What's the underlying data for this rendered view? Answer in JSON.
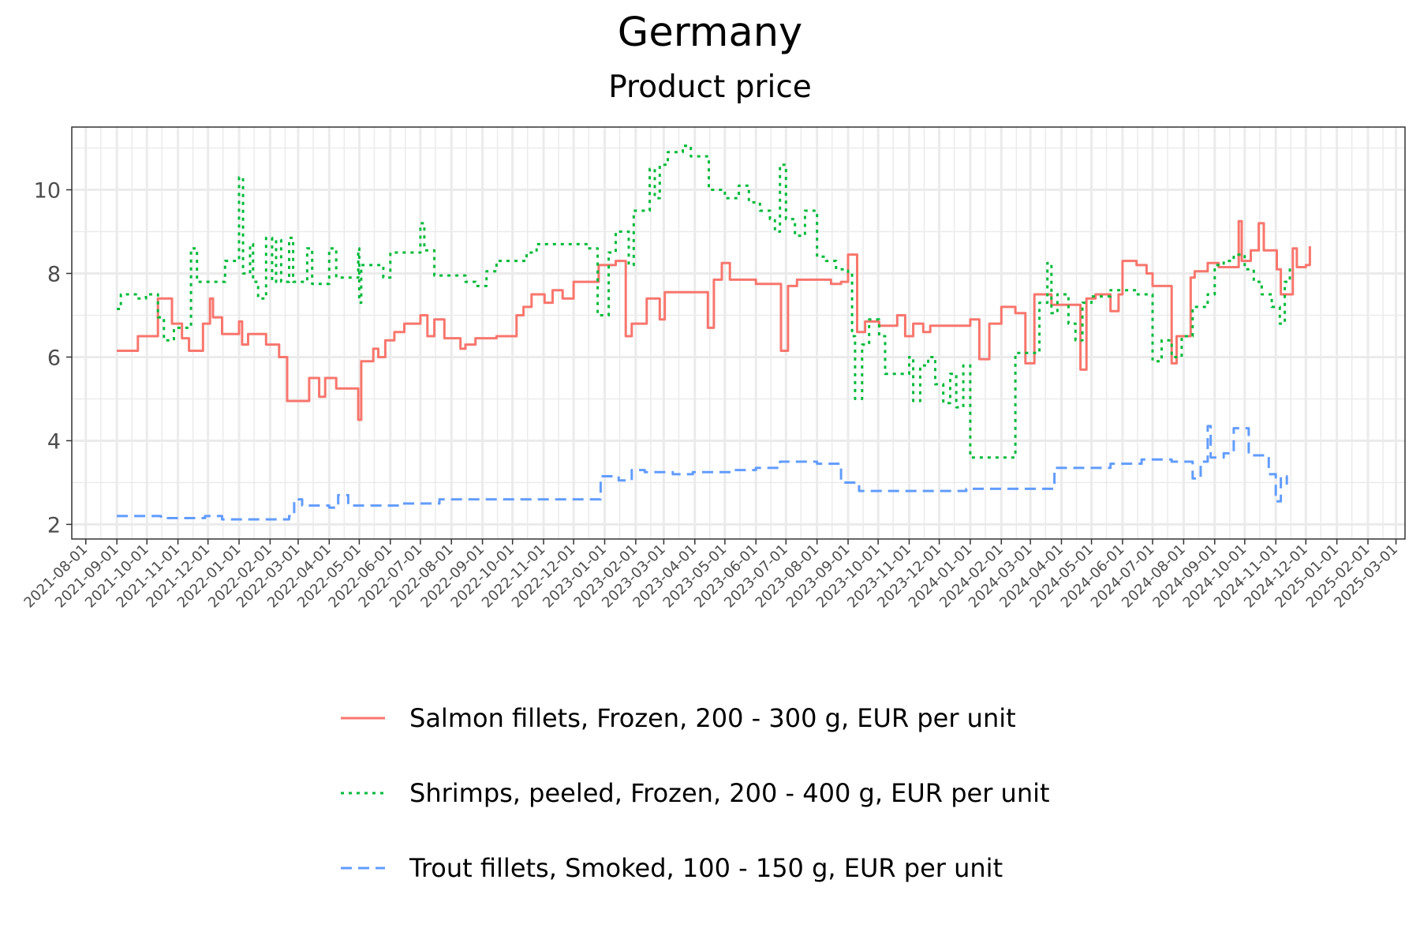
{
  "title": "Germany",
  "subtitle": "Product price",
  "chart_data": {
    "type": "line",
    "xlabel": "",
    "ylabel": "",
    "x_range": [
      "2021-07-18",
      "2025-03-10"
    ],
    "ylim": [
      1.65,
      11.5
    ],
    "y_ticks": [
      2,
      4,
      6,
      8,
      10
    ],
    "x_ticks": [
      "2021-08-01",
      "2021-09-01",
      "2021-10-01",
      "2021-11-01",
      "2021-12-01",
      "2022-01-01",
      "2022-02-01",
      "2022-03-01",
      "2022-04-01",
      "2022-05-01",
      "2022-06-01",
      "2022-07-01",
      "2022-08-01",
      "2022-09-01",
      "2022-10-01",
      "2022-11-01",
      "2022-12-01",
      "2023-01-01",
      "2023-02-01",
      "2023-03-01",
      "2023-04-01",
      "2023-05-01",
      "2023-06-01",
      "2023-07-01",
      "2023-08-01",
      "2023-09-01",
      "2023-10-01",
      "2023-11-01",
      "2023-12-01",
      "2024-01-01",
      "2024-02-01",
      "2024-03-01",
      "2024-04-01",
      "2024-05-01",
      "2024-06-01",
      "2024-07-01",
      "2024-08-01",
      "2024-09-01",
      "2024-10-01",
      "2024-11-01",
      "2024-12-01",
      "2025-01-01",
      "2025-02-01",
      "2025-03-01"
    ],
    "grid": true,
    "legend_position": "bottom",
    "series": [
      {
        "name": "Salmon fillets, Frozen, 200 - 300 g, EUR per unit",
        "color": "#f8766d",
        "line_style": "solid",
        "step": true,
        "points": [
          [
            "2021-09-01",
            6.15
          ],
          [
            "2021-09-22",
            6.5
          ],
          [
            "2021-10-12",
            7.4
          ],
          [
            "2021-10-26",
            6.8
          ],
          [
            "2021-11-05",
            6.45
          ],
          [
            "2021-11-12",
            6.15
          ],
          [
            "2021-11-26",
            6.8
          ],
          [
            "2021-12-03",
            7.4
          ],
          [
            "2021-12-06",
            6.95
          ],
          [
            "2021-12-15",
            6.55
          ],
          [
            "2022-01-01",
            6.85
          ],
          [
            "2022-01-04",
            6.3
          ],
          [
            "2022-01-10",
            6.55
          ],
          [
            "2022-01-28",
            6.3
          ],
          [
            "2022-02-10",
            6.0
          ],
          [
            "2022-02-18",
            4.95
          ],
          [
            "2022-03-12",
            5.5
          ],
          [
            "2022-03-22",
            5.05
          ],
          [
            "2022-03-28",
            5.5
          ],
          [
            "2022-04-08",
            5.25
          ],
          [
            "2022-04-30",
            4.5
          ],
          [
            "2022-05-03",
            5.9
          ],
          [
            "2022-05-15",
            6.2
          ],
          [
            "2022-05-20",
            6.0
          ],
          [
            "2022-05-27",
            6.4
          ],
          [
            "2022-06-05",
            6.6
          ],
          [
            "2022-06-15",
            6.8
          ],
          [
            "2022-07-01",
            7.0
          ],
          [
            "2022-07-08",
            6.5
          ],
          [
            "2022-07-15",
            6.9
          ],
          [
            "2022-07-25",
            6.45
          ],
          [
            "2022-08-10",
            6.2
          ],
          [
            "2022-08-15",
            6.3
          ],
          [
            "2022-08-25",
            6.45
          ],
          [
            "2022-09-15",
            6.5
          ],
          [
            "2022-10-05",
            7.0
          ],
          [
            "2022-10-12",
            7.2
          ],
          [
            "2022-10-20",
            7.5
          ],
          [
            "2022-11-02",
            7.3
          ],
          [
            "2022-11-10",
            7.6
          ],
          [
            "2022-11-20",
            7.4
          ],
          [
            "2022-12-01",
            7.8
          ],
          [
            "2022-12-26",
            8.2
          ],
          [
            "2023-01-12",
            8.3
          ],
          [
            "2023-01-22",
            6.5
          ],
          [
            "2023-01-28",
            6.8
          ],
          [
            "2023-02-12",
            7.4
          ],
          [
            "2023-02-25",
            6.9
          ],
          [
            "2023-03-02",
            7.55
          ],
          [
            "2023-04-14",
            6.7
          ],
          [
            "2023-04-20",
            7.85
          ],
          [
            "2023-04-28",
            8.25
          ],
          [
            "2023-05-06",
            7.85
          ],
          [
            "2023-06-01",
            7.75
          ],
          [
            "2023-06-26",
            6.15
          ],
          [
            "2023-07-03",
            7.7
          ],
          [
            "2023-07-12",
            7.85
          ],
          [
            "2023-08-15",
            7.75
          ],
          [
            "2023-08-25",
            7.8
          ],
          [
            "2023-09-01",
            8.45
          ],
          [
            "2023-09-10",
            6.6
          ],
          [
            "2023-09-18",
            6.85
          ],
          [
            "2023-10-02",
            6.75
          ],
          [
            "2023-10-20",
            7.0
          ],
          [
            "2023-10-28",
            6.5
          ],
          [
            "2023-11-05",
            6.8
          ],
          [
            "2023-11-15",
            6.6
          ],
          [
            "2023-11-22",
            6.75
          ],
          [
            "2024-01-01",
            6.9
          ],
          [
            "2024-01-10",
            5.95
          ],
          [
            "2024-01-20",
            6.8
          ],
          [
            "2024-02-01",
            7.2
          ],
          [
            "2024-02-15",
            7.05
          ],
          [
            "2024-02-25",
            5.85
          ],
          [
            "2024-03-05",
            7.5
          ],
          [
            "2024-03-22",
            7.25
          ],
          [
            "2024-04-20",
            5.7
          ],
          [
            "2024-04-26",
            7.4
          ],
          [
            "2024-05-05",
            7.5
          ],
          [
            "2024-05-20",
            7.1
          ],
          [
            "2024-05-28",
            7.5
          ],
          [
            "2024-06-01",
            8.3
          ],
          [
            "2024-06-15",
            8.2
          ],
          [
            "2024-06-25",
            8.0
          ],
          [
            "2024-07-01",
            7.7
          ],
          [
            "2024-07-20",
            5.85
          ],
          [
            "2024-07-25",
            6.5
          ],
          [
            "2024-08-08",
            7.9
          ],
          [
            "2024-08-12",
            8.05
          ],
          [
            "2024-08-25",
            8.25
          ],
          [
            "2024-09-05",
            8.15
          ],
          [
            "2024-09-25",
            9.25
          ],
          [
            "2024-09-28",
            8.3
          ],
          [
            "2024-10-07",
            8.55
          ],
          [
            "2024-10-15",
            9.2
          ],
          [
            "2024-10-20",
            8.55
          ],
          [
            "2024-11-02",
            8.1
          ],
          [
            "2024-11-06",
            7.5
          ],
          [
            "2024-11-18",
            8.6
          ],
          [
            "2024-11-22",
            8.15
          ],
          [
            "2024-12-01",
            8.2
          ],
          [
            "2024-12-05",
            8.65
          ]
        ]
      },
      {
        "name": "Shrimps, peeled, Frozen, 200 - 400 g, EUR per unit",
        "color": "#00ba38",
        "line_style": "dotted",
        "step": true,
        "points": [
          [
            "2021-09-01",
            7.15
          ],
          [
            "2021-09-05",
            7.5
          ],
          [
            "2021-09-20",
            7.4
          ],
          [
            "2021-09-30",
            7.5
          ],
          [
            "2021-10-12",
            6.95
          ],
          [
            "2021-10-18",
            6.4
          ],
          [
            "2021-10-28",
            6.7
          ],
          [
            "2021-11-14",
            8.6
          ],
          [
            "2021-11-20",
            7.8
          ],
          [
            "2021-12-18",
            8.3
          ],
          [
            "2022-01-01",
            10.3
          ],
          [
            "2022-01-05",
            8.0
          ],
          [
            "2022-01-12",
            8.7
          ],
          [
            "2022-01-15",
            7.8
          ],
          [
            "2022-01-20",
            7.4
          ],
          [
            "2022-01-28",
            8.85
          ],
          [
            "2022-02-03",
            7.8
          ],
          [
            "2022-02-07",
            8.8
          ],
          [
            "2022-02-12",
            7.8
          ],
          [
            "2022-02-20",
            8.85
          ],
          [
            "2022-02-24",
            7.8
          ],
          [
            "2022-03-10",
            8.6
          ],
          [
            "2022-03-15",
            7.75
          ],
          [
            "2022-04-01",
            8.6
          ],
          [
            "2022-04-08",
            7.9
          ],
          [
            "2022-04-30",
            8.6
          ],
          [
            "2022-05-01",
            7.3
          ],
          [
            "2022-05-03",
            8.2
          ],
          [
            "2022-05-25",
            7.9
          ],
          [
            "2022-06-01",
            8.5
          ],
          [
            "2022-07-01",
            9.2
          ],
          [
            "2022-07-05",
            8.55
          ],
          [
            "2022-07-15",
            7.95
          ],
          [
            "2022-08-15",
            7.8
          ],
          [
            "2022-08-25",
            7.7
          ],
          [
            "2022-09-05",
            8.05
          ],
          [
            "2022-09-15",
            8.3
          ],
          [
            "2022-10-15",
            8.5
          ],
          [
            "2022-10-25",
            8.7
          ],
          [
            "2022-12-15",
            8.6
          ],
          [
            "2022-12-25",
            7.0
          ],
          [
            "2023-01-05",
            8.5
          ],
          [
            "2023-01-12",
            9.0
          ],
          [
            "2023-01-25",
            8.2
          ],
          [
            "2023-01-30",
            9.5
          ],
          [
            "2023-02-15",
            10.5
          ],
          [
            "2023-02-20",
            9.8
          ],
          [
            "2023-02-25",
            10.6
          ],
          [
            "2023-03-05",
            10.9
          ],
          [
            "2023-03-20",
            11.05
          ],
          [
            "2023-03-28",
            10.8
          ],
          [
            "2023-04-15",
            10.0
          ],
          [
            "2023-05-01",
            9.8
          ],
          [
            "2023-05-15",
            10.1
          ],
          [
            "2023-05-25",
            9.7
          ],
          [
            "2023-06-05",
            9.5
          ],
          [
            "2023-06-15",
            9.3
          ],
          [
            "2023-06-20",
            9.0
          ],
          [
            "2023-06-25",
            10.6
          ],
          [
            "2023-07-01",
            9.3
          ],
          [
            "2023-07-10",
            8.9
          ],
          [
            "2023-07-20",
            9.5
          ],
          [
            "2023-08-01",
            8.4
          ],
          [
            "2023-08-10",
            8.3
          ],
          [
            "2023-08-20",
            8.1
          ],
          [
            "2023-09-01",
            8.0
          ],
          [
            "2023-09-05",
            6.5
          ],
          [
            "2023-09-08",
            5.0
          ],
          [
            "2023-09-15",
            6.3
          ],
          [
            "2023-09-22",
            6.9
          ],
          [
            "2023-10-02",
            6.5
          ],
          [
            "2023-10-08",
            5.6
          ],
          [
            "2023-11-01",
            6.0
          ],
          [
            "2023-11-05",
            4.95
          ],
          [
            "2023-11-12",
            5.8
          ],
          [
            "2023-11-20",
            6.0
          ],
          [
            "2023-11-27",
            5.35
          ],
          [
            "2023-12-05",
            4.9
          ],
          [
            "2023-12-12",
            5.6
          ],
          [
            "2023-12-18",
            4.8
          ],
          [
            "2023-12-25",
            5.8
          ],
          [
            "2024-01-01",
            3.6
          ],
          [
            "2024-02-15",
            6.1
          ],
          [
            "2024-03-10",
            7.3
          ],
          [
            "2024-03-18",
            8.25
          ],
          [
            "2024-03-22",
            7.05
          ],
          [
            "2024-03-28",
            7.5
          ],
          [
            "2024-04-08",
            6.8
          ],
          [
            "2024-04-15",
            6.4
          ],
          [
            "2024-04-22",
            7.3
          ],
          [
            "2024-05-01",
            7.45
          ],
          [
            "2024-05-20",
            7.6
          ],
          [
            "2024-06-15",
            7.5
          ],
          [
            "2024-07-01",
            5.9
          ],
          [
            "2024-07-10",
            6.4
          ],
          [
            "2024-07-20",
            6.0
          ],
          [
            "2024-07-30",
            6.5
          ],
          [
            "2024-08-10",
            7.2
          ],
          [
            "2024-08-25",
            7.5
          ],
          [
            "2024-09-01",
            8.2
          ],
          [
            "2024-09-10",
            8.3
          ],
          [
            "2024-09-20",
            8.45
          ],
          [
            "2024-10-01",
            8.1
          ],
          [
            "2024-10-10",
            7.8
          ],
          [
            "2024-10-18",
            7.5
          ],
          [
            "2024-10-28",
            7.2
          ],
          [
            "2024-11-05",
            6.8
          ],
          [
            "2024-11-10",
            7.8
          ],
          [
            "2024-11-15",
            8.2
          ]
        ]
      },
      {
        "name": "Trout fillets, Smoked, 100 - 150 g, EUR per unit",
        "color": "#619cff",
        "line_style": "dashed",
        "step": true,
        "points": [
          [
            "2021-09-01",
            2.2
          ],
          [
            "2021-10-15",
            2.15
          ],
          [
            "2021-11-28",
            2.2
          ],
          [
            "2021-12-15",
            2.12
          ],
          [
            "2022-02-20",
            2.2
          ],
          [
            "2022-02-25",
            2.6
          ],
          [
            "2022-03-05",
            2.45
          ],
          [
            "2022-04-01",
            2.4
          ],
          [
            "2022-04-10",
            2.7
          ],
          [
            "2022-04-20",
            2.45
          ],
          [
            "2022-05-10",
            2.45
          ],
          [
            "2022-06-10",
            2.5
          ],
          [
            "2022-07-20",
            2.6
          ],
          [
            "2022-12-28",
            3.15
          ],
          [
            "2023-01-15",
            3.05
          ],
          [
            "2023-01-28",
            3.3
          ],
          [
            "2023-02-10",
            3.25
          ],
          [
            "2023-03-10",
            3.2
          ],
          [
            "2023-03-30",
            3.25
          ],
          [
            "2023-05-10",
            3.3
          ],
          [
            "2023-06-01",
            3.35
          ],
          [
            "2023-06-25",
            3.5
          ],
          [
            "2023-08-01",
            3.45
          ],
          [
            "2023-08-25",
            3.0
          ],
          [
            "2023-09-12",
            2.8
          ],
          [
            "2023-12-28",
            2.85
          ],
          [
            "2024-02-15",
            2.85
          ],
          [
            "2024-03-25",
            3.35
          ],
          [
            "2024-04-25",
            3.35
          ],
          [
            "2024-05-20",
            3.45
          ],
          [
            "2024-06-20",
            3.55
          ],
          [
            "2024-07-20",
            3.5
          ],
          [
            "2024-08-10",
            3.1
          ],
          [
            "2024-08-18",
            3.5
          ],
          [
            "2024-08-25",
            4.35
          ],
          [
            "2024-08-28",
            3.6
          ],
          [
            "2024-09-10",
            3.7
          ],
          [
            "2024-09-20",
            4.3
          ],
          [
            "2024-10-05",
            3.65
          ],
          [
            "2024-10-25",
            3.2
          ],
          [
            "2024-11-01",
            2.55
          ],
          [
            "2024-11-06",
            3.15
          ],
          [
            "2024-11-12",
            2.95
          ]
        ]
      }
    ]
  }
}
